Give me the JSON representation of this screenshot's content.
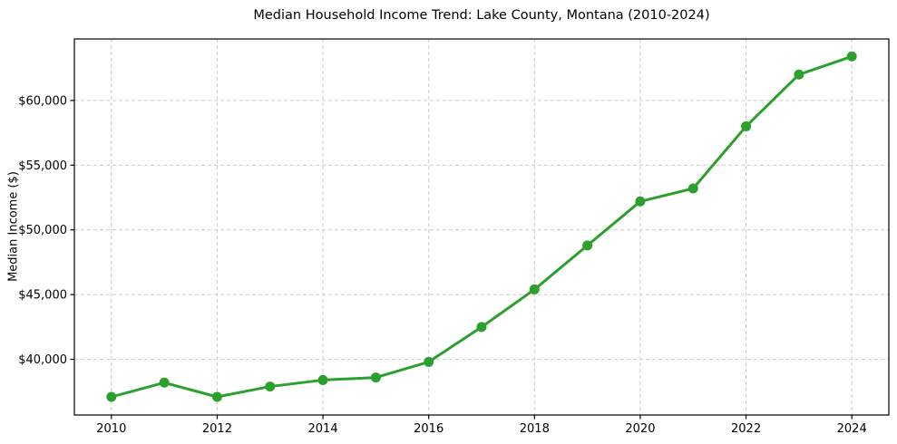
{
  "chart_data": {
    "type": "line",
    "title": "Median Household Income Trend: Lake County, Montana (2010-2024)",
    "xlabel": "",
    "ylabel": "Median Income ($)",
    "x": [
      2010,
      2011,
      2012,
      2013,
      2014,
      2015,
      2016,
      2017,
      2018,
      2019,
      2020,
      2021,
      2022,
      2023,
      2024
    ],
    "series": [
      {
        "name": "Median Household Income",
        "values": [
          37100,
          38200,
          37100,
          37900,
          38400,
          38600,
          39800,
          42500,
          45400,
          48800,
          52200,
          53200,
          58000,
          62000,
          63400
        ],
        "color": "#2ca02c"
      }
    ],
    "xlim": [
      2009.3,
      2024.7
    ],
    "ylim": [
      35700,
      64750
    ],
    "xticks": [
      2010,
      2012,
      2014,
      2016,
      2018,
      2020,
      2022,
      2024
    ],
    "xtick_labels": [
      "2010",
      "2012",
      "2014",
      "2016",
      "2018",
      "2020",
      "2022",
      "2024"
    ],
    "yticks": [
      40000,
      45000,
      50000,
      55000,
      60000
    ],
    "ytick_labels": [
      "$40,000",
      "$45,000",
      "$50,000",
      "$55,000",
      "$60,000"
    ],
    "grid": true,
    "grid_style": "dashed",
    "legend": false,
    "marker": "o",
    "line_width": 3,
    "marker_radius": 5.5,
    "colors": {
      "line": "#2ca02c",
      "grid": "#cccccc",
      "axis": "#000000",
      "text": "#000000",
      "background": "#ffffff"
    }
  }
}
